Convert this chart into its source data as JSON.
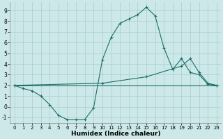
{
  "xlabel": "Humidex (Indice chaleur)",
  "xlim": [
    -0.5,
    23.5
  ],
  "ylim": [
    -1.5,
    9.8
  ],
  "yticks": [
    -1,
    0,
    1,
    2,
    3,
    4,
    5,
    6,
    7,
    8,
    9
  ],
  "xticks": [
    0,
    1,
    2,
    3,
    4,
    5,
    6,
    7,
    8,
    9,
    10,
    11,
    12,
    13,
    14,
    15,
    16,
    17,
    18,
    19,
    20,
    21,
    22,
    23
  ],
  "bg_color": "#cce8e8",
  "grid_color": "#aacccc",
  "line_color": "#1a6e68",
  "line1_x": [
    0,
    1,
    2,
    3,
    4,
    5,
    6,
    7,
    8,
    9,
    10,
    11,
    12,
    13,
    14,
    15,
    16,
    17,
    18,
    19,
    20,
    21,
    22,
    23
  ],
  "line1_y": [
    2.0,
    1.7,
    1.5,
    1.0,
    0.2,
    -0.8,
    -1.2,
    -1.2,
    -1.2,
    -0.1,
    4.4,
    6.5,
    7.8,
    8.2,
    8.6,
    9.3,
    8.5,
    5.5,
    3.5,
    4.5,
    3.2,
    3.0,
    2.1,
    2.0
  ],
  "line2_x": [
    0,
    10,
    15,
    19,
    20,
    21,
    22,
    23
  ],
  "line2_y": [
    2.0,
    2.2,
    2.8,
    3.8,
    4.5,
    3.2,
    2.2,
    2.0
  ],
  "line3_x": [
    0,
    23
  ],
  "line3_y": [
    2.0,
    2.0
  ]
}
